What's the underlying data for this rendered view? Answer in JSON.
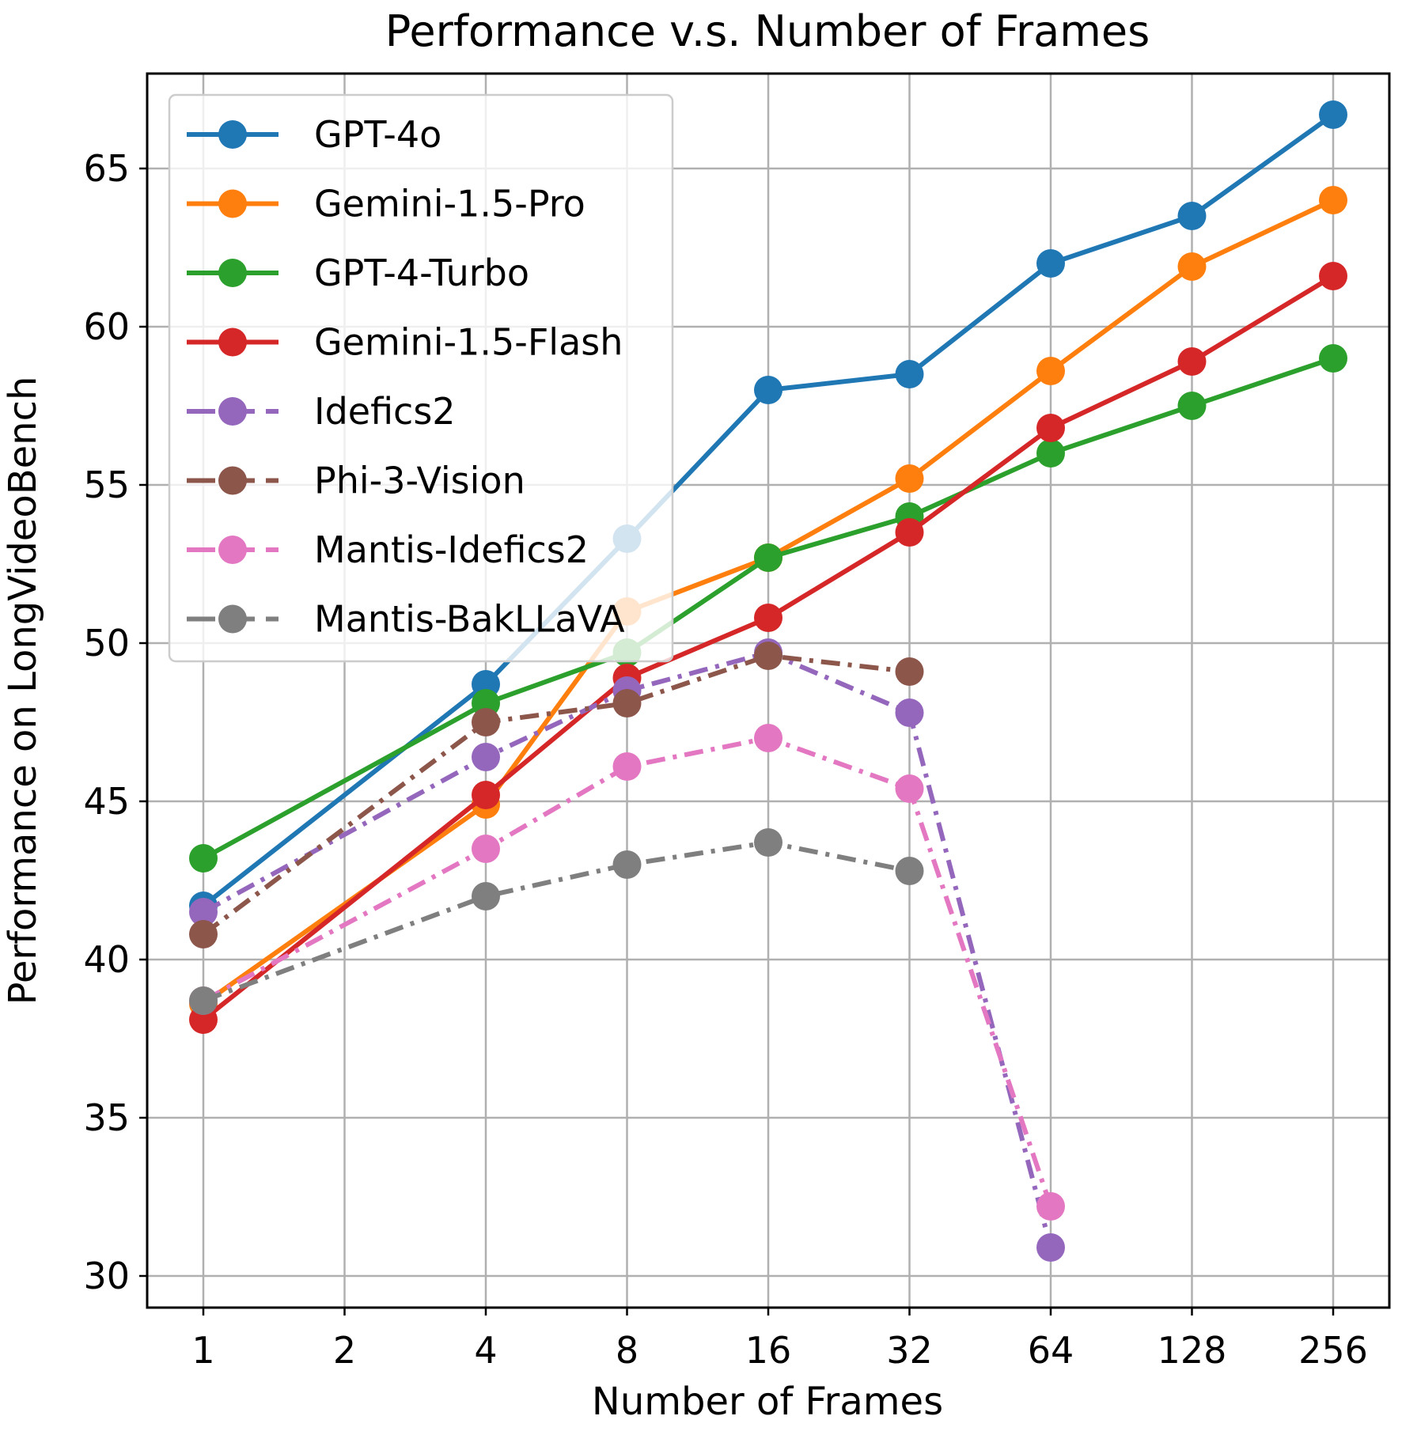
{
  "chart_data": {
    "type": "line",
    "title": "Performance v.s. Number of Frames",
    "xlabel": "Number of Frames",
    "ylabel": "Performance on LongVideoBench",
    "xscale": "log2",
    "x_ticks": [
      "1",
      "2",
      "4",
      "8",
      "16",
      "32",
      "64",
      "128",
      "256"
    ],
    "y_ticks": [
      "30",
      "35",
      "40",
      "45",
      "50",
      "55",
      "60",
      "65"
    ],
    "ylim": [
      29,
      68
    ],
    "grid": true,
    "legend_position": "top-left",
    "series": [
      {
        "name": "GPT-4o",
        "color": "#1f77b4",
        "dash": "solid",
        "x": [
          1,
          4,
          8,
          16,
          32,
          64,
          128,
          256
        ],
        "values": [
          41.7,
          48.7,
          53.3,
          58.0,
          58.5,
          62.0,
          63.5,
          66.7
        ]
      },
      {
        "name": "Gemini-1.5-Pro",
        "color": "#ff7f0e",
        "dash": "solid",
        "x": [
          1,
          4,
          8,
          16,
          32,
          64,
          128,
          256
        ],
        "values": [
          38.6,
          44.9,
          51.0,
          52.7,
          55.2,
          58.6,
          61.9,
          64.0
        ]
      },
      {
        "name": "GPT-4-Turbo",
        "color": "#2ca02c",
        "dash": "solid",
        "x": [
          1,
          4,
          8,
          16,
          32,
          64,
          128,
          256
        ],
        "values": [
          43.2,
          48.1,
          49.7,
          52.7,
          54.0,
          56.0,
          57.5,
          59.0
        ]
      },
      {
        "name": "Gemini-1.5-Flash",
        "color": "#d62728",
        "dash": "solid",
        "x": [
          1,
          4,
          8,
          16,
          32,
          64,
          128,
          256
        ],
        "values": [
          38.1,
          45.2,
          48.9,
          50.8,
          53.5,
          56.8,
          58.9,
          61.6
        ]
      },
      {
        "name": "Idefics2",
        "color": "#9467bd",
        "dash": "dashdot",
        "x": [
          1,
          4,
          8,
          16,
          32,
          64
        ],
        "values": [
          41.5,
          46.4,
          48.5,
          49.7,
          47.8,
          30.9
        ]
      },
      {
        "name": "Phi-3-Vision",
        "color": "#8c564b",
        "dash": "dashdot",
        "x": [
          1,
          4,
          8,
          16,
          32
        ],
        "values": [
          40.8,
          47.5,
          48.1,
          49.6,
          49.1
        ]
      },
      {
        "name": "Mantis-Idefics2",
        "color": "#e377c2",
        "dash": "dashdot",
        "x": [
          1,
          4,
          8,
          16,
          32,
          64
        ],
        "values": [
          38.7,
          43.5,
          46.1,
          47.0,
          45.4,
          32.2
        ]
      },
      {
        "name": "Mantis-BakLLaVA",
        "color": "#7f7f7f",
        "dash": "dashdot",
        "x": [
          1,
          4,
          8,
          16,
          32
        ],
        "values": [
          38.7,
          42.0,
          43.0,
          43.7,
          42.8
        ]
      }
    ]
  }
}
